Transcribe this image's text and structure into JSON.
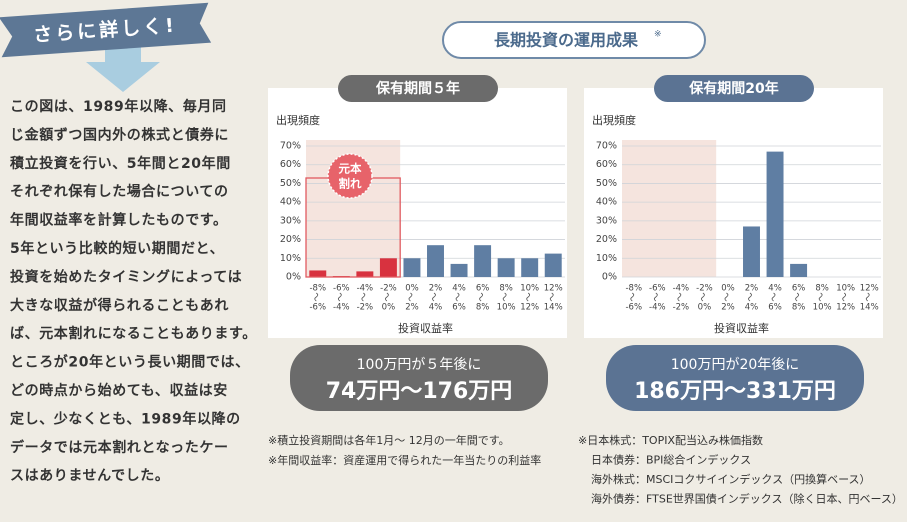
{
  "banner": "さらに詳しく!",
  "header": {
    "title": "長期投資の運用成果",
    "mark": "※"
  },
  "body": [
    "この図は、1989年以降、毎月同",
    "じ金額ずつ国内外の株式と債券に",
    "積立投資を行い、5年間と20年間",
    "それぞれ保有した場合についての",
    "年間収益率を計算したものです。",
    "5年という比較的短い期間だと、",
    "投資を始めたタイミングによっては",
    "大きな収益が得られることもあれ",
    "ば、元本割れになることもあります。",
    "ところが20年という長い期間では、",
    "どの時点から始めても、収益は安",
    "定し、少なくとも、1989年以降の",
    "データでは元本割れとなったケー",
    "スはありませんでした。"
  ],
  "chart_data": [
    {
      "type": "bar",
      "title": "保有期間５年",
      "ylabel": "出現頻度",
      "xlabel": "投資収益率",
      "categories": [
        [
          "-8%",
          "-6%"
        ],
        [
          "-6%",
          "-4%"
        ],
        [
          "-4%",
          "-2%"
        ],
        [
          "-2%",
          "0%"
        ],
        [
          "0%",
          "2%"
        ],
        [
          "2%",
          "4%"
        ],
        [
          "4%",
          "6%"
        ],
        [
          "6%",
          "8%"
        ],
        [
          "8%",
          "10%"
        ],
        [
          "10%",
          "12%"
        ],
        [
          "12%",
          "14%"
        ]
      ],
      "values": [
        3.5,
        0.5,
        3,
        10,
        10,
        17,
        7,
        17,
        10,
        10,
        12.5
      ],
      "colors": [
        "#d8323f",
        "#d8323f",
        "#d8323f",
        "#d8323f",
        "#5f7ea3",
        "#5f7ea3",
        "#5f7ea3",
        "#5f7ea3",
        "#5f7ea3",
        "#5f7ea3",
        "#5f7ea3"
      ],
      "ylim": [
        0,
        70
      ],
      "yticks": [
        {
          "value": 0,
          "label": "0%"
        },
        {
          "value": 10,
          "label": "10%"
        },
        {
          "value": 20,
          "label": "20%"
        },
        {
          "value": 30,
          "label": "30%"
        },
        {
          "value": 40,
          "label": "40%"
        },
        {
          "value": 50,
          "label": "50%"
        },
        {
          "value": 60,
          "label": "60%"
        },
        {
          "value": 70,
          "label": "70%"
        }
      ],
      "grid": true,
      "annotation": [
        "元本",
        "割れ"
      ],
      "result_caption": "100万円が５年後に",
      "result": "74万円〜176万円"
    },
    {
      "type": "bar",
      "title": "保有期間20年",
      "ylabel": "出現頻度",
      "xlabel": "投資収益率",
      "categories": [
        [
          "-8%",
          "-6%"
        ],
        [
          "-6%",
          "-4%"
        ],
        [
          "-4%",
          "-2%"
        ],
        [
          "-2%",
          "0%"
        ],
        [
          "0%",
          "2%"
        ],
        [
          "2%",
          "4%"
        ],
        [
          "4%",
          "6%"
        ],
        [
          "6%",
          "8%"
        ],
        [
          "8%",
          "10%"
        ],
        [
          "10%",
          "12%"
        ],
        [
          "12%",
          "14%"
        ]
      ],
      "values": [
        0,
        0,
        0,
        0,
        0,
        27,
        67,
        7,
        0,
        0,
        0
      ],
      "color": "#5f7ea3",
      "ylim": [
        0,
        70
      ],
      "yticks": [
        {
          "value": 0,
          "label": "0%"
        },
        {
          "value": 10,
          "label": "10%"
        },
        {
          "value": 20,
          "label": "20%"
        },
        {
          "value": 30,
          "label": "30%"
        },
        {
          "value": 40,
          "label": "40%"
        },
        {
          "value": 50,
          "label": "50%"
        },
        {
          "value": 60,
          "label": "60%"
        },
        {
          "value": 70,
          "label": "70%"
        }
      ],
      "grid": true,
      "result_caption": "100万円が20年後に",
      "result": "186万円〜331万円"
    }
  ],
  "notes_left": [
    "※積立投資期間は各年1月〜 12月の一年間です。",
    "※年間収益率：資産運用で得られた一年当たりの利益率"
  ],
  "notes_right": [
    "※日本株式：TOPIX配当込み株価指数",
    "日本債券：BPI総合インデックス",
    "海外株式：MSCIコクサイインデックス（円換算ベース）",
    "海外債券：FTSE世界国債インデックス（除く日本、円ベース）"
  ]
}
